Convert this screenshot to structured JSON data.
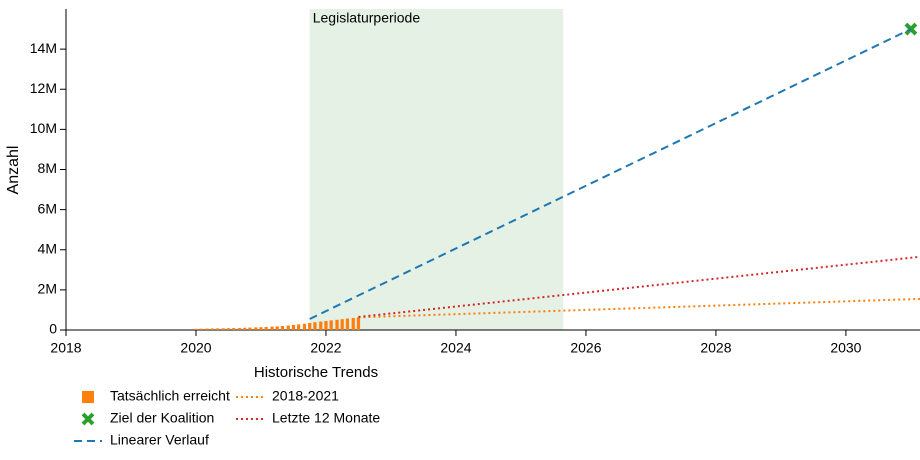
{
  "chart_data": {
    "type": "line",
    "ylabel": "Anzahl",
    "xlim": [
      2018,
      2031.14
    ],
    "xticks": [
      2018,
      2020,
      2022,
      2024,
      2026,
      2028,
      2030
    ],
    "ylim": [
      0,
      16000000
    ],
    "yticks": [
      {
        "value": 0,
        "label": "0"
      },
      {
        "value": 2000000,
        "label": "2M"
      },
      {
        "value": 4000000,
        "label": "4M"
      },
      {
        "value": 6000000,
        "label": "6M"
      },
      {
        "value": 8000000,
        "label": "8M"
      },
      {
        "value": 10000000,
        "label": "10M"
      },
      {
        "value": 12000000,
        "label": "12M"
      },
      {
        "value": 14000000,
        "label": "14M"
      }
    ],
    "span": {
      "x": [
        2021.75,
        2025.65
      ],
      "label": "Legislaturperiode",
      "color": "#e4f1e4"
    },
    "legend_title": "Historische Trends",
    "series": [
      {
        "name": "Tatsächlich erreicht",
        "style": "bar",
        "color": "#ff7f0e",
        "x": [
          2020,
          2020.08,
          2020.17,
          2020.25,
          2020.33,
          2020.42,
          2020.5,
          2020.58,
          2020.67,
          2020.75,
          2020.83,
          2020.92,
          2021,
          2021.08,
          2021.17,
          2021.25,
          2021.33,
          2021.42,
          2021.5,
          2021.58,
          2021.67,
          2021.75,
          2021.83,
          2021.92,
          2022,
          2022.08,
          2022.17,
          2022.25,
          2022.33,
          2022.42,
          2022.5
        ],
        "values": [
          60000,
          65000,
          70000,
          75000,
          80000,
          85000,
          90000,
          95000,
          100000,
          110000,
          120000,
          130000,
          140000,
          150000,
          165000,
          180000,
          200000,
          220000,
          250000,
          280000,
          310000,
          350000,
          390000,
          420000,
          450000,
          480000,
          510000,
          540000,
          570000,
          600000,
          630000
        ]
      },
      {
        "name": "Ziel der Koalition",
        "style": "marker",
        "color": "#2ca02c",
        "x": [
          2031
        ],
        "values": [
          15000000
        ]
      },
      {
        "name": "Linearer Verlauf",
        "style": "dashed",
        "color": "#1f77b4",
        "x": [
          2021.75,
          2031
        ],
        "values": [
          550000,
          15000000
        ]
      },
      {
        "name": "2018-2021",
        "style": "dotted",
        "color": "#ff7f0e",
        "x": [
          2022.5,
          2031.14
        ],
        "values": [
          630000,
          1550000
        ]
      },
      {
        "name": "Letzte 12 Monate",
        "style": "dotted",
        "color": "#d62728",
        "x": [
          2022.5,
          2031.14
        ],
        "values": [
          650000,
          3650000
        ]
      }
    ]
  }
}
